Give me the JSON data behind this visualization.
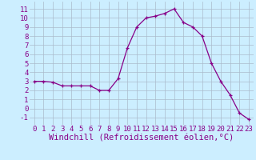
{
  "x": [
    0,
    1,
    2,
    3,
    4,
    5,
    6,
    7,
    8,
    9,
    10,
    11,
    12,
    13,
    14,
    15,
    16,
    17,
    18,
    19,
    20,
    21,
    22,
    23
  ],
  "y": [
    3.0,
    3.0,
    2.9,
    2.5,
    2.5,
    2.5,
    2.5,
    2.0,
    2.0,
    3.3,
    6.7,
    9.0,
    10.0,
    10.2,
    10.5,
    11.0,
    9.5,
    9.0,
    8.0,
    5.0,
    3.0,
    1.5,
    -0.5,
    -1.2
  ],
  "xlabel": "Windchill (Refroidissement éolien,°C)",
  "ylim": [
    -1.8,
    11.8
  ],
  "xlim": [
    -0.5,
    23.5
  ],
  "yticks": [
    -1,
    0,
    1,
    2,
    3,
    4,
    5,
    6,
    7,
    8,
    9,
    10,
    11
  ],
  "xticks": [
    0,
    1,
    2,
    3,
    4,
    5,
    6,
    7,
    8,
    9,
    10,
    11,
    12,
    13,
    14,
    15,
    16,
    17,
    18,
    19,
    20,
    21,
    22,
    23
  ],
  "line_color": "#880088",
  "marker": "+",
  "bg_color": "#cceeff",
  "grid_color": "#aabbcc",
  "tick_label_fontsize": 6.5,
  "xlabel_fontsize": 7.5
}
